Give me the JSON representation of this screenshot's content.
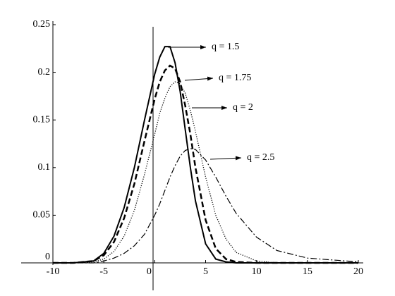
{
  "chart_data": {
    "type": "line",
    "x": [
      -10,
      -8,
      -6,
      -5,
      -4,
      -3,
      -2,
      -1,
      0,
      0.5,
      1,
      1.5,
      2,
      2.5,
      3,
      3.5,
      4,
      5,
      6,
      7,
      8,
      10,
      12,
      15,
      20
    ],
    "series": [
      {
        "name": "q = 1.5",
        "color": "#000000",
        "style": "solid",
        "values": [
          0,
          0,
          0.002,
          0.01,
          0.028,
          0.058,
          0.1,
          0.15,
          0.198,
          0.216,
          0.227,
          0.227,
          0.21,
          0.18,
          0.14,
          0.1,
          0.065,
          0.02,
          0.004,
          0.001,
          0,
          0,
          0,
          0,
          0
        ]
      },
      {
        "name": "q = 1.75",
        "color": "#000000",
        "style": "dashed",
        "values": [
          0,
          0,
          0.002,
          0.008,
          0.022,
          0.047,
          0.083,
          0.128,
          0.172,
          0.19,
          0.202,
          0.207,
          0.204,
          0.19,
          0.165,
          0.135,
          0.1,
          0.045,
          0.015,
          0.004,
          0.001,
          0,
          0,
          0,
          0
        ]
      },
      {
        "name": "q = 2",
        "color": "#000000",
        "style": "dotted",
        "values": [
          0,
          0,
          0.001,
          0.004,
          0.012,
          0.028,
          0.055,
          0.093,
          0.135,
          0.157,
          0.173,
          0.185,
          0.19,
          0.188,
          0.178,
          0.16,
          0.138,
          0.09,
          0.05,
          0.025,
          0.011,
          0.002,
          0,
          0,
          0
        ]
      },
      {
        "name": "q = 2.5",
        "color": "#000000",
        "style": "dashdot",
        "values": [
          0,
          0,
          0,
          0.002,
          0.005,
          0.01,
          0.018,
          0.03,
          0.05,
          0.062,
          0.076,
          0.09,
          0.102,
          0.112,
          0.118,
          0.12,
          0.119,
          0.108,
          0.09,
          0.07,
          0.052,
          0.027,
          0.013,
          0.005,
          0.001
        ]
      }
    ],
    "xlim": [
      -10,
      20
    ],
    "xticks": [
      -10,
      -5,
      0,
      5,
      10,
      15,
      20
    ],
    "ylim": [
      0,
      0.25
    ],
    "yticks": [
      0,
      0.05,
      0.1,
      0.15,
      0.2,
      0.25
    ]
  }
}
